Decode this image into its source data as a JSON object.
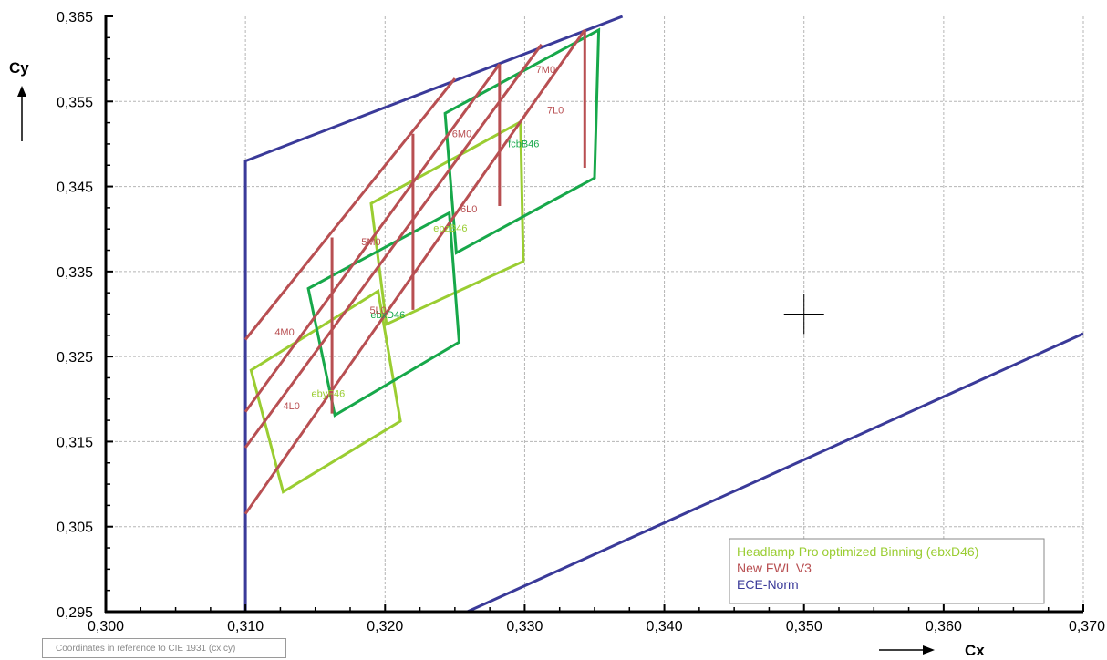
{
  "chart_data": {
    "type": "line",
    "xlabel": "Cx",
    "ylabel": "Cy",
    "xlim": [
      0.3,
      0.37
    ],
    "ylim": [
      0.295,
      0.365
    ],
    "grid": true,
    "legend_position": "bottom-right",
    "x_ticks": [
      "0,300",
      "0,310",
      "0,320",
      "0,330",
      "0,340",
      "0,350",
      "0,360",
      "0,370"
    ],
    "y_ticks": [
      "0,295",
      "0,305",
      "0,315",
      "0,325",
      "0,335",
      "0,345",
      "0,355",
      "0,365"
    ],
    "note": "Coordinates in reference to CIE 1931 (cx cy)",
    "crosshair": [
      0.35,
      0.33
    ],
    "series": [
      {
        "name": "Headlamp Pro optimized Binning (ebxD46)",
        "color": "#9acd32",
        "polygons": [
          {
            "label": "ebyF46",
            "points": [
              [
                0.3104,
                0.3234
              ],
              [
                0.3195,
                0.3327
              ],
              [
                0.3211,
                0.3174
              ],
              [
                0.3127,
                0.3091
              ]
            ]
          },
          {
            "label": "ebzB46",
            "points": [
              [
                0.319,
                0.343
              ],
              [
                0.3297,
                0.3526
              ],
              [
                0.3299,
                0.3362
              ],
              [
                0.3201,
                0.3288
              ]
            ]
          }
        ]
      },
      {
        "name": "",
        "color": "#17a84a",
        "polygons": [
          {
            "label": "ebxD46",
            "points": [
              [
                0.3145,
                0.333
              ],
              [
                0.3246,
                0.3419
              ],
              [
                0.3253,
                0.3267
              ],
              [
                0.3164,
                0.3181
              ]
            ]
          },
          {
            "label": "fcbB46",
            "points": [
              [
                0.3243,
                0.3536
              ],
              [
                0.3353,
                0.3634
              ],
              [
                0.335,
                0.346
              ],
              [
                0.3251,
                0.3372
              ]
            ]
          }
        ]
      },
      {
        "name": "New FWL V3",
        "color": "#b84f52",
        "verticals": [
          [
            0.3162,
            0.3183,
            0.339
          ],
          [
            0.322,
            0.3305,
            0.3512
          ],
          [
            0.3282,
            0.3427,
            0.3594
          ],
          [
            0.3343,
            0.3472,
            0.3634
          ]
        ],
        "diagonals": [
          [
            [
              0.31,
              0.327
            ],
            [
              0.325,
              0.3577
            ]
          ],
          [
            [
              0.31,
              0.3185
            ],
            [
              0.3282,
              0.3594
            ]
          ],
          [
            [
              0.31,
              0.3143
            ],
            [
              0.3312,
              0.3617
            ]
          ],
          [
            [
              0.31,
              0.3065
            ],
            [
              0.3343,
              0.3634
            ]
          ]
        ],
        "labels": [
          {
            "text": "4L0",
            "at": [
              0.3133,
              0.3192
            ]
          },
          {
            "text": "4M0",
            "at": [
              0.3128,
              0.3279
            ]
          },
          {
            "text": "5L0",
            "at": [
              0.3195,
              0.3305
            ]
          },
          {
            "text": "5M0",
            "at": [
              0.319,
              0.3385
            ]
          },
          {
            "text": "6L0",
            "at": [
              0.326,
              0.3424
            ]
          },
          {
            "text": "6M0",
            "at": [
              0.3255,
              0.3512
            ]
          },
          {
            "text": "7L0",
            "at": [
              0.3322,
              0.354
            ]
          },
          {
            "text": "7M0",
            "at": [
              0.3315,
              0.3588
            ]
          }
        ]
      },
      {
        "name": "ECE-Norm",
        "color": "#3a3a99",
        "lines": [
          [
            [
              0.31,
              0.295
            ],
            [
              0.31,
              0.348
            ],
            [
              0.337,
              0.365
            ]
          ],
          [
            [
              0.3259,
              0.295
            ],
            [
              0.37,
              0.3277
            ]
          ]
        ]
      }
    ]
  }
}
